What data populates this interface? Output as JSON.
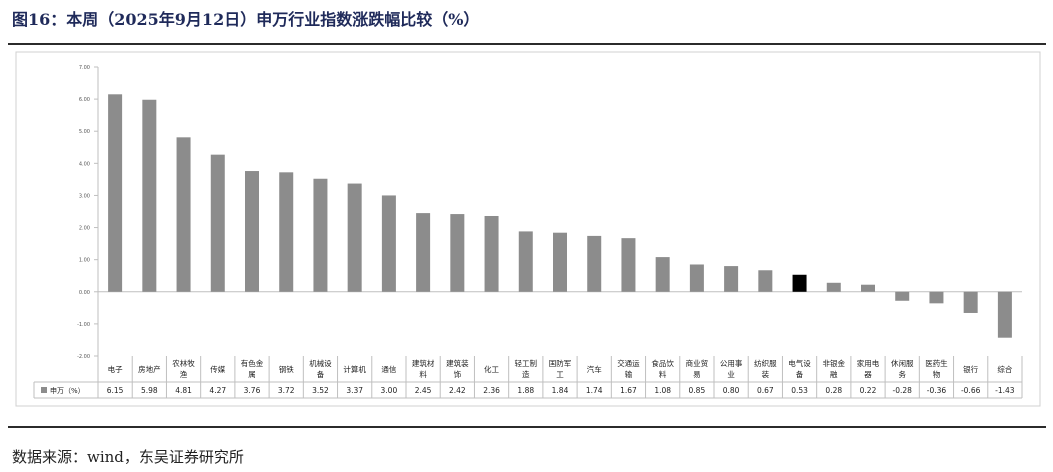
{
  "title": "图16：本周（2025年9月12日）申万行业指数涨跌幅比较（%）",
  "source": "数据来源：wind，东吴证券研究所",
  "colors": {
    "bar": "#8c8c8c",
    "highlight": "#000000",
    "text": "#1f2a5a"
  },
  "chart_data": {
    "type": "bar",
    "title": "",
    "xlabel": "",
    "ylabel": "",
    "ylim": [
      -2.0,
      7.0
    ],
    "yticks": [
      "7.00",
      "6.00",
      "5.00",
      "4.00",
      "3.00",
      "2.00",
      "1.00",
      "0.00",
      "-1.00",
      "-2.00"
    ],
    "grid": false,
    "legend": "table-left",
    "categories": [
      [
        "电子"
      ],
      [
        "房地产"
      ],
      [
        "农林牧",
        "渔"
      ],
      [
        "传媒"
      ],
      [
        "有色金",
        "属"
      ],
      [
        "钢铁"
      ],
      [
        "机械设",
        "备"
      ],
      [
        "计算机"
      ],
      [
        "通信"
      ],
      [
        "建筑材",
        "料"
      ],
      [
        "建筑装",
        "饰"
      ],
      [
        "化工"
      ],
      [
        "轻工制",
        "造"
      ],
      [
        "国防军",
        "工"
      ],
      [
        "汽车"
      ],
      [
        "交通运",
        "输"
      ],
      [
        "食品饮",
        "料"
      ],
      [
        "商业贸",
        "易"
      ],
      [
        "公用事",
        "业"
      ],
      [
        "纺织服",
        "装"
      ],
      [
        "电气设",
        "备"
      ],
      [
        "非银金",
        "融"
      ],
      [
        "家用电",
        "器"
      ],
      [
        "休闲服",
        "务"
      ],
      [
        "医药生",
        "物"
      ],
      [
        "银行"
      ],
      [
        "综合"
      ]
    ],
    "series": [
      {
        "name": "申万（%）",
        "values": [
          6.15,
          5.98,
          4.81,
          4.27,
          3.76,
          3.72,
          3.52,
          3.37,
          3.0,
          2.45,
          2.42,
          2.36,
          1.88,
          1.84,
          1.74,
          1.67,
          1.08,
          0.85,
          0.8,
          0.67,
          0.53,
          0.28,
          0.22,
          -0.28,
          -0.36,
          -0.66,
          -1.43
        ],
        "labels": [
          "6.15",
          "5.98",
          "4.81",
          "4.27",
          "3.76",
          "3.72",
          "3.52",
          "3.37",
          "3.00",
          "2.45",
          "2.42",
          "2.36",
          "1.88",
          "1.84",
          "1.74",
          "1.67",
          "1.08",
          "0.85",
          "0.80",
          "0.67",
          "0.53",
          "0.28",
          "0.22",
          "-0.28",
          "-0.36",
          "-0.66",
          "-1.43"
        ]
      }
    ],
    "highlight_category": "电气设备"
  }
}
